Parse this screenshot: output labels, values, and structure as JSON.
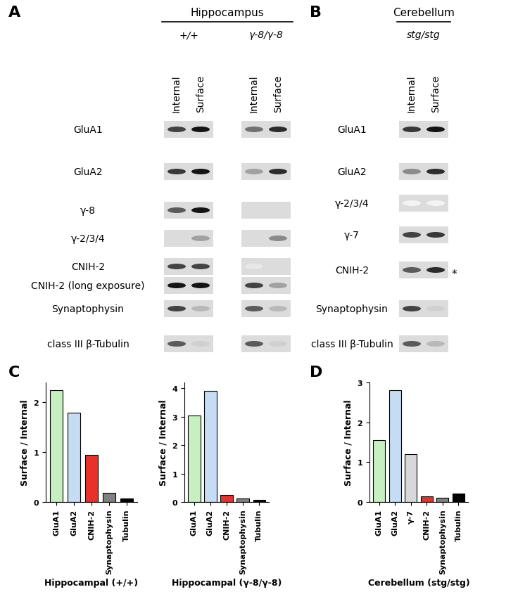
{
  "panels": [
    {
      "label": "A",
      "title": "Hippocampus",
      "rows": [
        "GluA1",
        "GluA2",
        "γ-8",
        "γ-2/3/4",
        "CNIH-2",
        "CNIH-2 (long exposure)",
        "Synaptophysin",
        "class III β-Tubulin"
      ],
      "groups": [
        {
          "genotype": "+/+",
          "lanes": [
            "Internal",
            "Surface"
          ],
          "band_intensity": [
            [
              0.8,
              1.0
            ],
            [
              0.85,
              1.0
            ],
            [
              0.7,
              1.0
            ],
            [
              0.0,
              0.4
            ],
            [
              0.8,
              0.8
            ],
            [
              1.0,
              1.0
            ],
            [
              0.8,
              0.3
            ],
            [
              0.7,
              0.2
            ]
          ]
        },
        {
          "genotype": "γ-8/γ-8",
          "lanes": [
            "Internal",
            "Surface"
          ],
          "band_intensity": [
            [
              0.6,
              0.9
            ],
            [
              0.4,
              0.9
            ],
            [
              0.0,
              0.0
            ],
            [
              0.0,
              0.5
            ],
            [
              0.1,
              0.0
            ],
            [
              0.8,
              0.4
            ],
            [
              0.7,
              0.3
            ],
            [
              0.7,
              0.2
            ]
          ]
        }
      ]
    },
    {
      "label": "B",
      "title": "Cerebellum",
      "rows": [
        "GluA1",
        "GluA2",
        "γ-2/3/4",
        "γ-7",
        "CNIH-2",
        "Synaptophysin",
        "class III β-Tubulin"
      ],
      "notes": {
        "CNIH-2": "*"
      },
      "groups": [
        {
          "genotype": "stg/stg",
          "lanes": [
            "Internal",
            "Surface"
          ],
          "band_intensity": [
            [
              0.85,
              1.0
            ],
            [
              0.5,
              0.9
            ],
            [
              0.05,
              0.05
            ],
            [
              0.8,
              0.85
            ],
            [
              0.7,
              0.9
            ],
            [
              0.8,
              0.2
            ],
            [
              0.7,
              0.3
            ]
          ]
        }
      ]
    }
  ],
  "chart_data": [
    {
      "panel": "C",
      "type": "bar",
      "categories": [
        "GluA1",
        "GluA2",
        "CNIH-2",
        "Synaptophysin",
        "Tubulin"
      ],
      "values": [
        2.25,
        1.8,
        0.95,
        0.18,
        0.07
      ],
      "colors": [
        "#c6f0c0",
        "#c4dcf4",
        "#e8312a",
        "#808080",
        "#000000"
      ],
      "ylabel": "Surface / Internal",
      "xlabel": "Hippocampal (+/+)",
      "ylim": [
        0,
        2.4
      ],
      "yticks": [
        0,
        1,
        2
      ]
    },
    {
      "type": "bar",
      "categories": [
        "GluA1",
        "GluA2",
        "CNIH-2",
        "Synaptophysin",
        "Tubulin"
      ],
      "values": [
        3.05,
        3.9,
        0.25,
        0.12,
        0.08
      ],
      "colors": [
        "#c6f0c0",
        "#c4dcf4",
        "#e8312a",
        "#808080",
        "#000000"
      ],
      "ylabel": "Surface / Internal",
      "xlabel": "Hippocampal (γ-8/γ-8)",
      "ylim": [
        0,
        4.2
      ],
      "yticks": [
        0,
        1,
        2,
        3,
        4
      ]
    },
    {
      "panel": "D",
      "type": "bar",
      "categories": [
        "GluA1",
        "GluA2",
        "γ-7",
        "CNIH-2",
        "Synaptophysin",
        "Tubulin"
      ],
      "values": [
        1.55,
        2.8,
        1.2,
        0.15,
        0.1,
        0.22
      ],
      "colors": [
        "#c6f0c0",
        "#c4dcf4",
        "#d8d8d8",
        "#e8312a",
        "#808080",
        "#000000"
      ],
      "ylabel": "Surface / Internal",
      "xlabel": "Cerebellum (stg/stg)",
      "ylim": [
        0,
        3
      ],
      "yticks": [
        0,
        1,
        2,
        3
      ]
    }
  ]
}
